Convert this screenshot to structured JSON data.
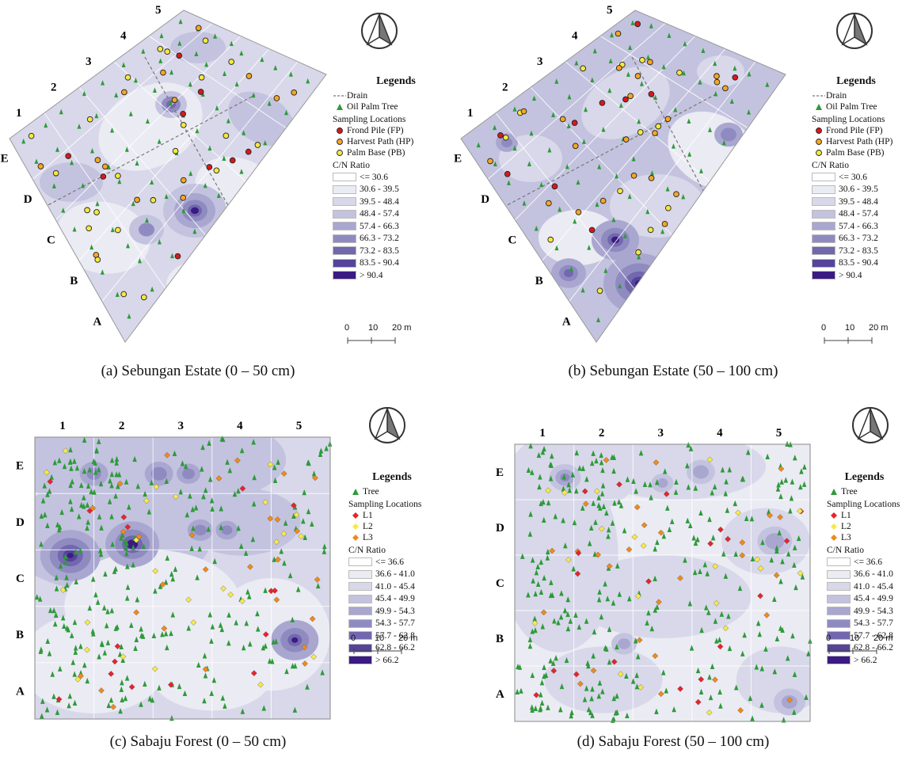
{
  "panels": [
    {
      "id": "a",
      "caption": "(a) Sebungan Estate (0 – 50 cm)",
      "legend": {
        "title": "Legends",
        "items": [
          {
            "label": "Drain",
            "symbol": "dash"
          },
          {
            "label": "Oil Palm Tree",
            "symbol": "tree"
          }
        ],
        "sampling_title": "Sampling Locations",
        "sampling": [
          {
            "label": "Frond Pile (FP)",
            "color": "#d7191c",
            "shape": "circle"
          },
          {
            "label": "Harvest Path (HP)",
            "color": "#f5a623",
            "shape": "circle"
          },
          {
            "label": "Palm Base (PB)",
            "color": "#f4e842",
            "shape": "circle"
          }
        ],
        "ratio_title": "C/N Ratio",
        "classes": [
          "<= 30.6",
          "30.6 - 39.5",
          "39.5 - 48.4",
          "48.4 - 57.4",
          "57.4 - 66.3",
          "66.3 - 73.2",
          "73.2 - 83.5",
          "83.5 - 90.4",
          "> 90.4"
        ]
      },
      "columns": [
        "1",
        "2",
        "3",
        "4",
        "5"
      ],
      "rows": [
        "E",
        "D",
        "C",
        "B",
        "A"
      ],
      "scale": [
        "0",
        "10",
        "20 m"
      ]
    },
    {
      "id": "b",
      "caption": "(b) Sebungan Estate (50 – 100 cm)",
      "legend": {
        "title": "Legends",
        "items": [
          {
            "label": "Drain",
            "symbol": "dash"
          },
          {
            "label": "Oil Palm Tree",
            "symbol": "tree"
          }
        ],
        "sampling_title": "Sampling Locations",
        "sampling": [
          {
            "label": "Frond Pile (FP)",
            "color": "#d7191c",
            "shape": "circle"
          },
          {
            "label": "Harvest Path (HP)",
            "color": "#f5a623",
            "shape": "circle"
          },
          {
            "label": "Palm Base (PB)",
            "color": "#f4e842",
            "shape": "circle"
          }
        ],
        "ratio_title": "C/N Ratio",
        "classes": [
          "<= 30.6",
          "30.6 - 39.5",
          "39.5 - 48.4",
          "48.4 - 57.4",
          "57.4 - 66.3",
          "66.3 - 73.2",
          "73.2 - 83.5",
          "83.5 - 90.4",
          "> 90.4"
        ]
      },
      "columns": [
        "1",
        "2",
        "3",
        "4",
        "5"
      ],
      "rows": [
        "E",
        "D",
        "C",
        "B",
        "A"
      ],
      "scale": [
        "0",
        "10",
        "20 m"
      ]
    },
    {
      "id": "c",
      "caption": "(c) Sabaju Forest (0 – 50 cm)",
      "legend": {
        "title": "Legends",
        "items": [
          {
            "label": "Tree",
            "symbol": "tree"
          }
        ],
        "sampling_title": "Sampling Locations",
        "sampling": [
          {
            "label": "L1",
            "color": "#e8232a",
            "shape": "diamond"
          },
          {
            "label": "L2",
            "color": "#f6e94a",
            "shape": "diamond"
          },
          {
            "label": "L3",
            "color": "#ef8a1a",
            "shape": "diamond"
          }
        ],
        "ratio_title": "C/N Ratio",
        "classes": [
          "<= 36.6",
          "36.6 - 41.0",
          "41.0 - 45.4",
          "45.4 - 49.9",
          "49.9 - 54.3",
          "54.3 - 57.7",
          "57.7 - 62.8",
          "62.8 - 66.2",
          "> 66.2"
        ]
      },
      "columns": [
        "1",
        "2",
        "3",
        "4",
        "5"
      ],
      "rows": [
        "E",
        "D",
        "C",
        "B",
        "A"
      ],
      "scale": [
        "0",
        "10",
        "20 m"
      ]
    },
    {
      "id": "d",
      "caption": "(d) Sabaju Forest (50 – 100 cm)",
      "legend": {
        "title": "Legends",
        "items": [
          {
            "label": "Tree",
            "symbol": "tree"
          }
        ],
        "sampling_title": "Sampling Locations",
        "sampling": [
          {
            "label": "L1",
            "color": "#e8232a",
            "shape": "diamond"
          },
          {
            "label": "L2",
            "color": "#f6e94a",
            "shape": "diamond"
          },
          {
            "label": "L3",
            "color": "#ef8a1a",
            "shape": "diamond"
          }
        ],
        "ratio_title": "C/N Ratio",
        "classes": [
          "<= 36.6",
          "36.6 - 41.0",
          "41.0 - 45.4",
          "45.4 - 49.9",
          "49.9 - 54.3",
          "54.3 - 57.7",
          "57.7 - 62.8",
          "62.8 - 66.2",
          "> 66.2"
        ]
      },
      "columns": [
        "1",
        "2",
        "3",
        "4",
        "5"
      ],
      "rows": [
        "E",
        "D",
        "C",
        "B",
        "A"
      ],
      "scale": [
        "0",
        "10",
        "20 m"
      ]
    }
  ],
  "palette": [
    "#ffffff",
    "#ebebf4",
    "#d8d8ea",
    "#c3c3df",
    "#a9a7d0",
    "#8f8bc1",
    "#7268ae",
    "#55449a",
    "#3a1a83"
  ]
}
